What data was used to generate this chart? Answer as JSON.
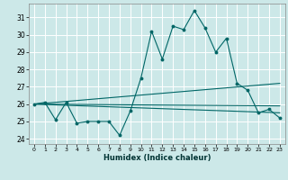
{
  "xlabel": "Humidex (Indice chaleur)",
  "bg_color": "#cce8e8",
  "grid_color": "#ffffff",
  "line_color": "#006666",
  "xlim": [
    -0.5,
    23.5
  ],
  "ylim": [
    23.7,
    31.8
  ],
  "yticks": [
    24,
    25,
    26,
    27,
    28,
    29,
    30,
    31
  ],
  "xticks": [
    0,
    1,
    2,
    3,
    4,
    5,
    6,
    7,
    8,
    9,
    10,
    11,
    12,
    13,
    14,
    15,
    16,
    17,
    18,
    19,
    20,
    21,
    22,
    23
  ],
  "main_x": [
    0,
    1,
    2,
    3,
    4,
    5,
    6,
    7,
    8,
    9,
    10,
    11,
    12,
    13,
    14,
    15,
    16,
    17,
    18,
    19,
    20,
    21,
    22,
    23
  ],
  "main_y": [
    26.0,
    26.1,
    25.1,
    26.1,
    24.9,
    25.0,
    25.0,
    25.0,
    24.2,
    25.6,
    27.5,
    30.2,
    28.6,
    30.5,
    30.3,
    31.4,
    30.4,
    29.0,
    29.8,
    27.2,
    26.8,
    25.5,
    25.7,
    25.2
  ],
  "line1_x": [
    0,
    23
  ],
  "line1_y": [
    26.0,
    27.2
  ],
  "line2_x": [
    0,
    23
  ],
  "line2_y": [
    26.0,
    25.9
  ],
  "line3_x": [
    0,
    23
  ],
  "line3_y": [
    26.0,
    25.5
  ],
  "xlabel_fontsize": 6.0,
  "ytick_fontsize": 5.5,
  "xtick_fontsize": 4.5
}
